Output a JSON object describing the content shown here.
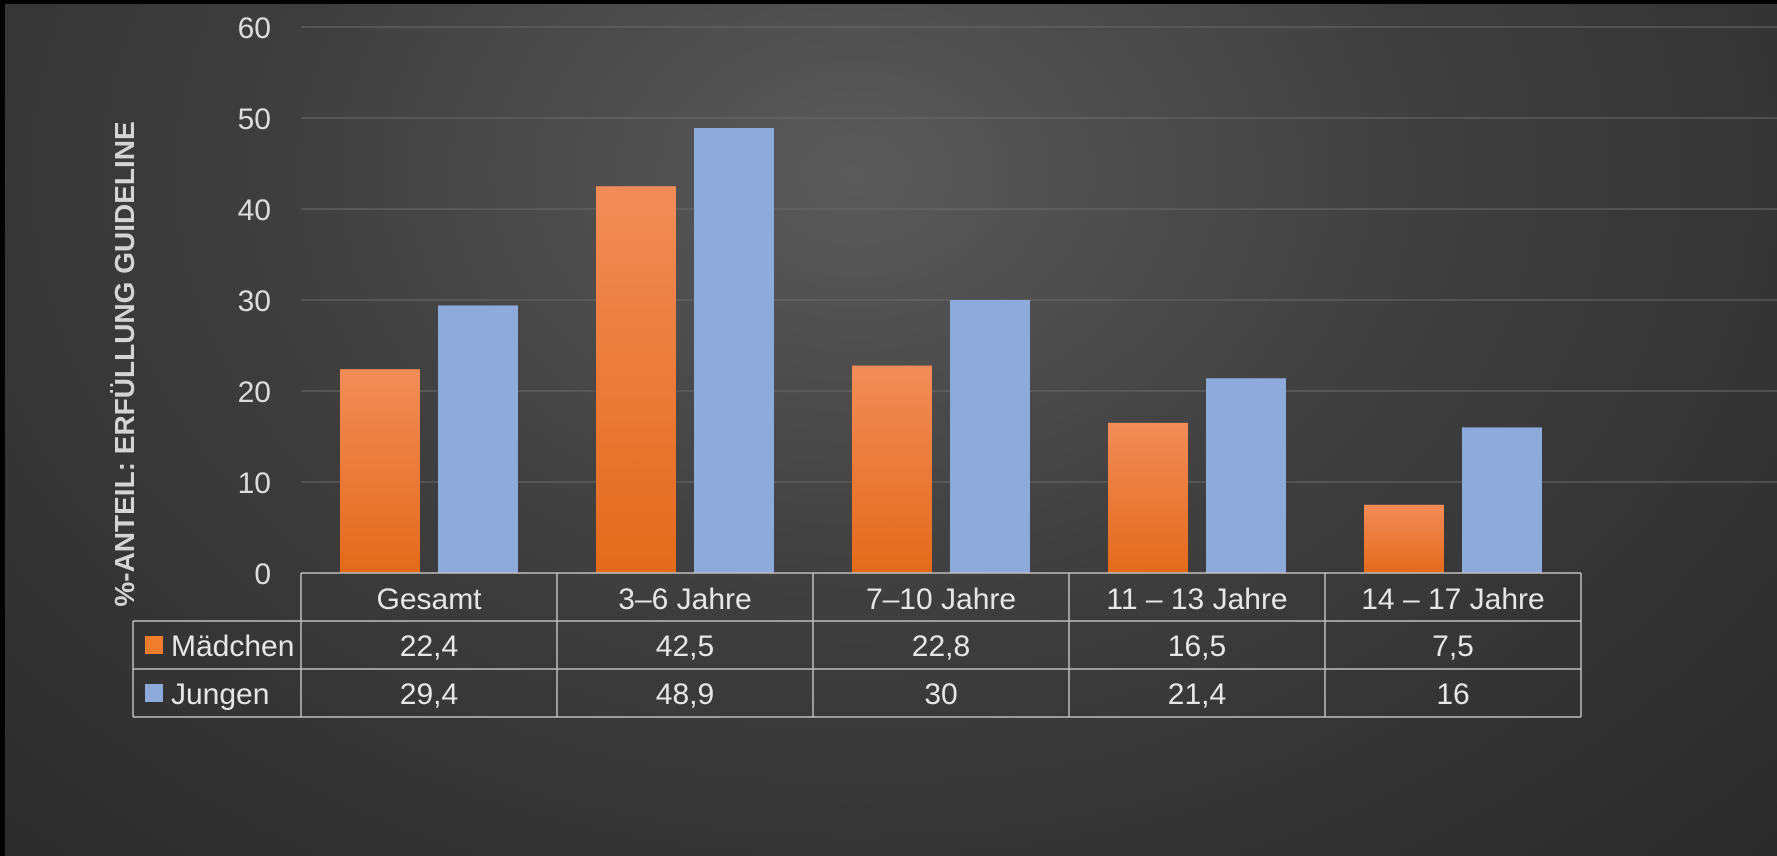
{
  "chart_data": {
    "type": "bar",
    "title": "",
    "xlabel": "",
    "ylabel": "%-ANTEIL: ERFÜLLUNG GUIDELINE",
    "ylim": [
      0,
      60
    ],
    "yticks": [
      "0",
      "10",
      "20",
      "30",
      "40",
      "50",
      "60"
    ],
    "grid": true,
    "legend": "data-table",
    "categories": [
      "Gesamt",
      "3–6 Jahre",
      "7–10 Jahre",
      "11 – 13 Jahre",
      "14 – 17 Jahre"
    ],
    "series": [
      {
        "name": "Mädchen",
        "color": "#f07d2e",
        "values": [
          22.4,
          42.5,
          22.8,
          16.5,
          7.5
        ],
        "labels": [
          "22,4",
          "42,5",
          "22,8",
          "16,5",
          "7,5"
        ]
      },
      {
        "name": "Jungen",
        "color": "#8eaadb",
        "values": [
          29.4,
          48.9,
          30,
          21.4,
          16
        ],
        "labels": [
          "29,4",
          "48,9",
          "30",
          "21,4",
          "16"
        ]
      }
    ]
  }
}
